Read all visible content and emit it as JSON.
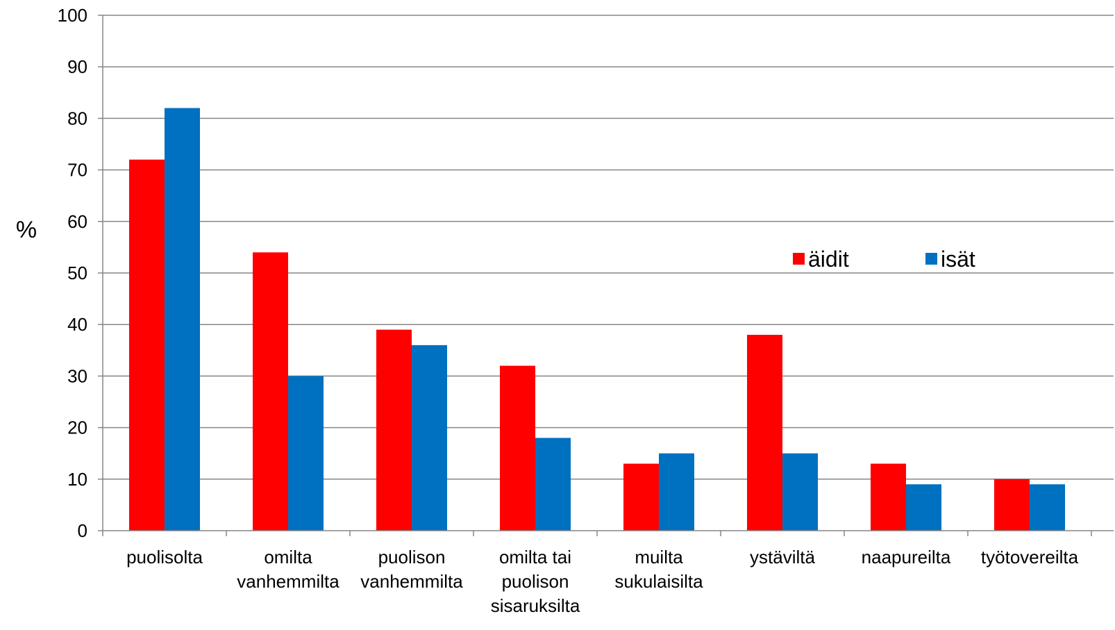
{
  "chart_data": {
    "type": "bar",
    "ylabel": "%",
    "xlabel": "",
    "ylim": [
      0,
      100
    ],
    "yticks": [
      "0",
      "10",
      "20",
      "30",
      "40",
      "50",
      "60",
      "70",
      "80",
      "90",
      "100"
    ],
    "grid": true,
    "legend_position": "right-middle",
    "categories": [
      [
        "puolisolta"
      ],
      [
        "omilta",
        "vanhemmilta"
      ],
      [
        "puolison",
        "vanhemmilta"
      ],
      [
        "omilta tai",
        "puolison",
        "sisaruksilta"
      ],
      [
        "muilta",
        "sukulaisilta"
      ],
      [
        "ystäviltä"
      ],
      [
        "naapureilta"
      ],
      [
        "työtovereilta"
      ]
    ],
    "series": [
      {
        "name": "äidit",
        "color": "#ff0000",
        "values": [
          72,
          54,
          39,
          32,
          13,
          38,
          13,
          10
        ]
      },
      {
        "name": "isät",
        "color": "#0070c0",
        "values": [
          82,
          30,
          36,
          18,
          15,
          15,
          9,
          9
        ]
      }
    ]
  }
}
